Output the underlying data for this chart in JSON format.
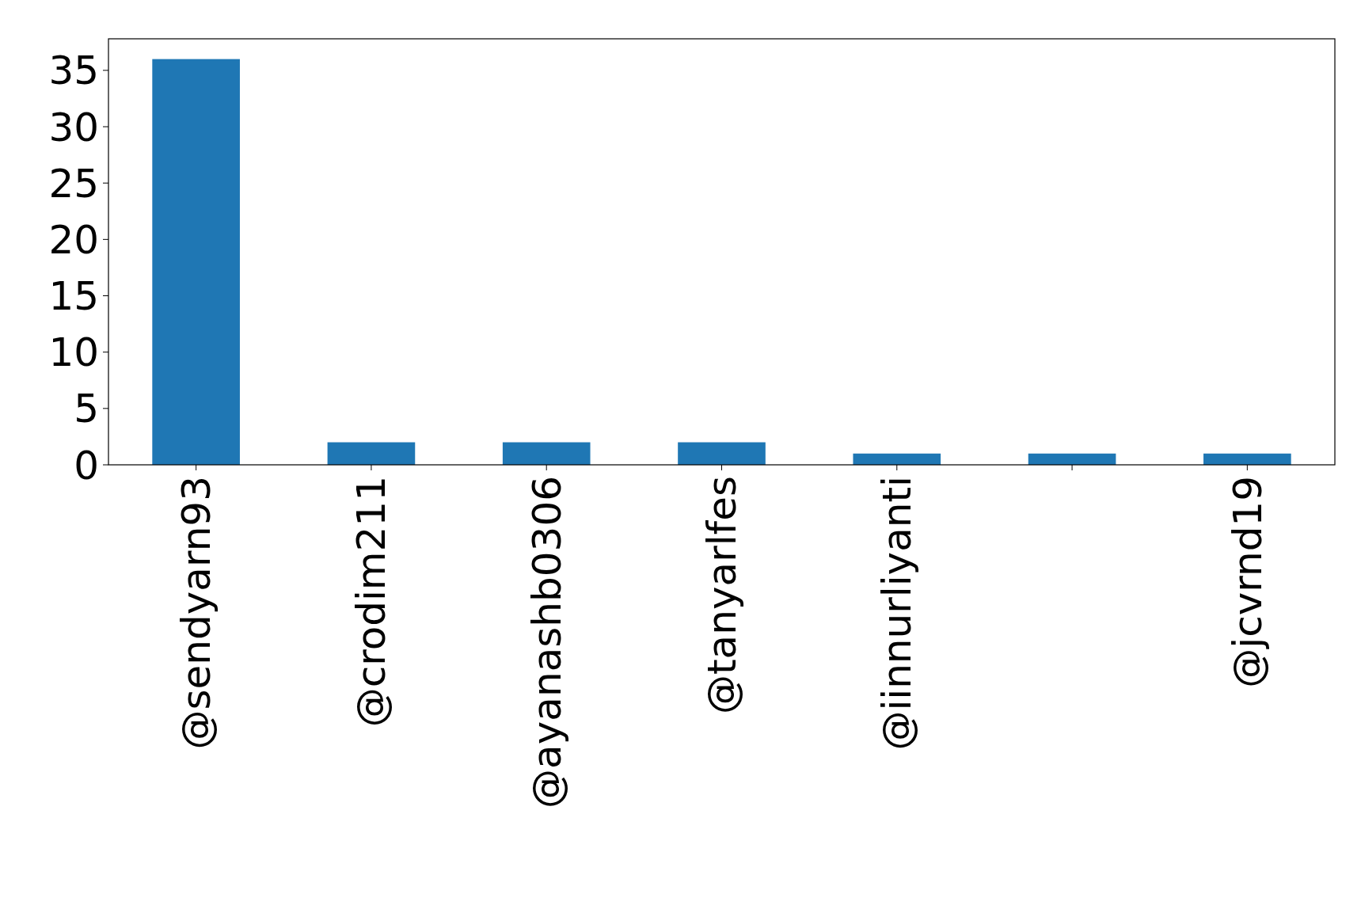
{
  "chart_data": {
    "type": "bar",
    "categories": [
      "@sendyarn93",
      "@crodim211",
      "@ayanashb0306",
      "@tanyarlfes",
      "@iinnurliyanti",
      null,
      "@jcvrnd19"
    ],
    "values": [
      36,
      2,
      2,
      2,
      1,
      1,
      1
    ],
    "color": "#1f77b4",
    "ylim": [
      0,
      37.8
    ],
    "yticks": [
      0,
      5,
      10,
      15,
      20,
      25,
      30,
      35
    ],
    "grid": false
  }
}
